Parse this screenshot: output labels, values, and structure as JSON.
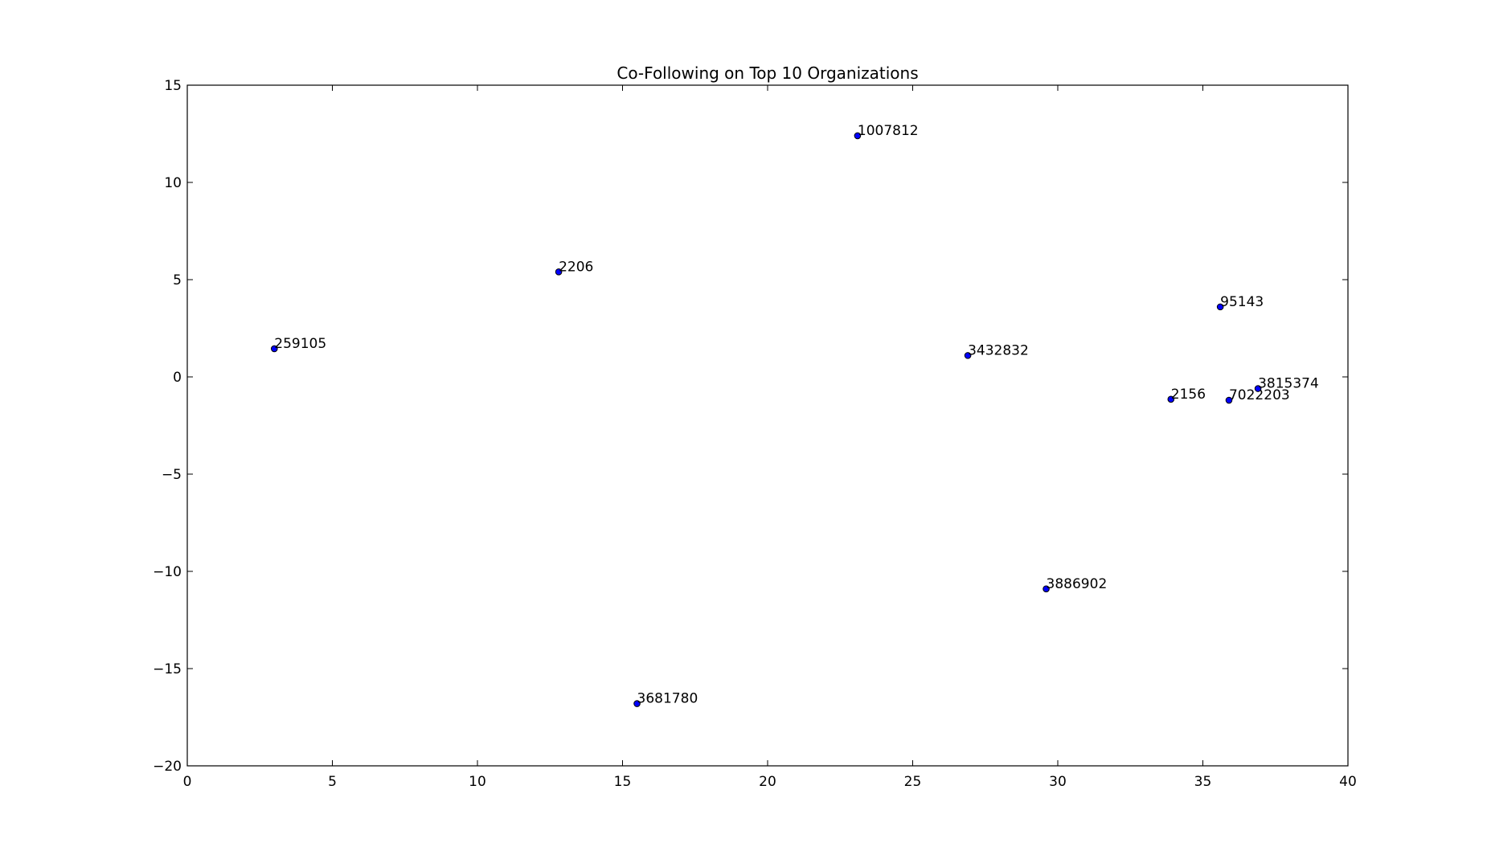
{
  "chart_data": {
    "type": "scatter",
    "title": "Co-Following on Top 10 Organizations",
    "xlabel": "",
    "ylabel": "",
    "xlim": [
      0,
      40
    ],
    "ylim": [
      -20,
      15
    ],
    "xticks": [
      0,
      5,
      10,
      15,
      20,
      25,
      30,
      35,
      40
    ],
    "yticks": [
      -20,
      -15,
      -10,
      -5,
      0,
      5,
      10,
      15
    ],
    "grid": false,
    "marker_color": "#0000ff",
    "points": [
      {
        "label": "1007812",
        "x": 23.1,
        "y": 12.4
      },
      {
        "label": "2206",
        "x": 12.8,
        "y": 5.4
      },
      {
        "label": "259105",
        "x": 3.0,
        "y": 1.45
      },
      {
        "label": "95143",
        "x": 35.6,
        "y": 3.6
      },
      {
        "label": "3432832",
        "x": 26.9,
        "y": 1.1
      },
      {
        "label": "2156",
        "x": 33.9,
        "y": -1.15
      },
      {
        "label": "7022203",
        "x": 35.9,
        "y": -1.2
      },
      {
        "label": "3815374",
        "x": 36.9,
        "y": -0.6
      },
      {
        "label": "3886902",
        "x": 29.6,
        "y": -10.9
      },
      {
        "label": "3681780",
        "x": 15.5,
        "y": -16.8
      }
    ]
  }
}
